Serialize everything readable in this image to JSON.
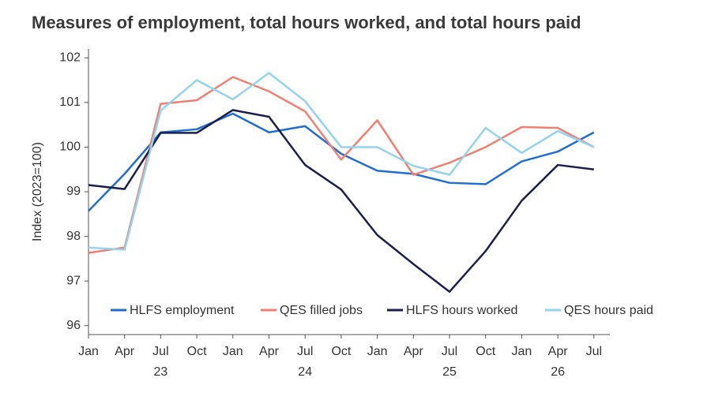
{
  "chart_data": {
    "type": "line",
    "title": "Measures of employment, total hours worked, and total hours paid",
    "y_label": "Index (2023=100)",
    "categories": [
      "Jan",
      "Apr",
      "Jul",
      "Oct",
      "Jan",
      "Apr",
      "Jul",
      "Oct",
      "Jan",
      "Apr",
      "Jul",
      "Oct",
      "Jan",
      "Apr",
      "Jul"
    ],
    "category_years": [
      null,
      null,
      "23",
      null,
      null,
      null,
      "24",
      null,
      null,
      null,
      "25",
      null,
      null,
      "26",
      null
    ],
    "series": [
      {
        "name": "HLFS employment",
        "color": "#1f6fd0",
        "values": [
          98.57,
          99.4,
          100.33,
          100.4,
          100.75,
          100.33,
          100.47,
          99.85,
          99.47,
          99.4,
          99.2,
          99.17,
          99.68,
          99.9,
          100.33
        ]
      },
      {
        "name": "QES filled jobs",
        "color": "#f07f6f",
        "values": [
          97.63,
          97.75,
          100.97,
          101.05,
          101.57,
          101.25,
          100.8,
          99.72,
          100.6,
          99.38,
          99.65,
          100.0,
          100.45,
          100.43,
          100.0
        ]
      },
      {
        "name": "HLFS hours worked",
        "color": "#1c1f4e",
        "values": [
          99.15,
          99.06,
          100.32,
          100.32,
          100.83,
          100.68,
          99.6,
          99.05,
          98.03,
          97.38,
          96.76,
          97.67,
          98.8,
          99.6,
          99.5
        ]
      },
      {
        "name": "QES hours paid",
        "color": "#92d4f0",
        "values": [
          97.75,
          97.7,
          100.82,
          101.5,
          101.07,
          101.66,
          101.03,
          100.0,
          100.0,
          99.58,
          99.38,
          100.43,
          99.87,
          100.36,
          100.0
        ]
      }
    ],
    "ylim": [
      95.8,
      102.2
    ],
    "yticks": [
      96,
      97,
      98,
      99,
      100,
      101,
      102
    ],
    "legend": "bottom"
  }
}
